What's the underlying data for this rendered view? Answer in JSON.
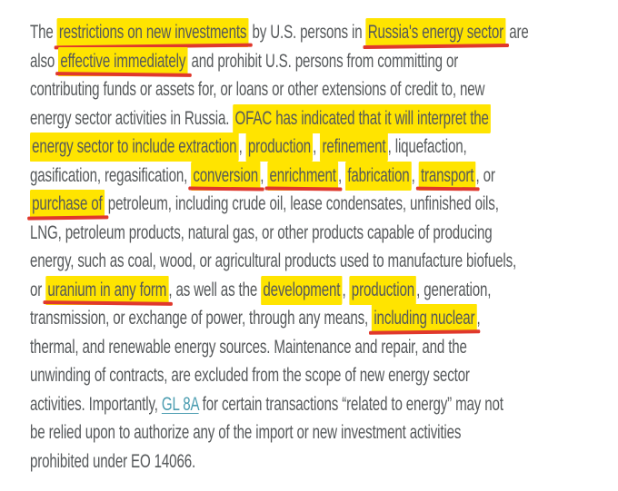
{
  "page": {
    "background_color": "#ffffff",
    "text_color": "#55585a",
    "highlight_color": "#ffe400",
    "underline_color": "#e0382c",
    "link_color": "#4a9cb0"
  },
  "paragraph": {
    "lines": [
      {
        "segments": [
          {
            "text": "The ",
            "style": "plain"
          },
          {
            "text": "restrictions on new investments",
            "style": "highlight-underline"
          },
          {
            "text": " by U.S. persons in ",
            "style": "plain"
          },
          {
            "text": "Russia's energy sector",
            "style": "highlight-underline"
          },
          {
            "text": " are",
            "style": "plain"
          }
        ]
      },
      {
        "segments": [
          {
            "text": "also ",
            "style": "plain"
          },
          {
            "text": "effective immediately",
            "style": "highlight-underline"
          },
          {
            "text": " and prohibit U.S. persons from committing or",
            "style": "plain"
          }
        ]
      },
      {
        "segments": [
          {
            "text": "contributing funds or assets for, or loans or other extensions of credit to, new",
            "style": "plain"
          }
        ]
      },
      {
        "segments": [
          {
            "text": "energy sector activities in Russia. ",
            "style": "plain"
          },
          {
            "text": "OFAC has indicated that it will interpret the",
            "style": "highlight"
          }
        ]
      },
      {
        "segments": [
          {
            "text": "energy sector to include extraction",
            "style": "highlight"
          },
          {
            "text": ", ",
            "style": "plain"
          },
          {
            "text": "production",
            "style": "highlight"
          },
          {
            "text": ", ",
            "style": "plain"
          },
          {
            "text": "refinement",
            "style": "highlight"
          },
          {
            "text": ", liquefaction,",
            "style": "plain"
          }
        ]
      },
      {
        "segments": [
          {
            "text": "gasification, regasification, ",
            "style": "plain"
          },
          {
            "text": "conversion",
            "style": "highlight-underline"
          },
          {
            "text": ", ",
            "style": "plain"
          },
          {
            "text": "enrichment",
            "style": "highlight-underline"
          },
          {
            "text": ", ",
            "style": "plain"
          },
          {
            "text": "fabrication",
            "style": "highlight"
          },
          {
            "text": ", ",
            "style": "plain"
          },
          {
            "text": "transport",
            "style": "highlight-underline"
          },
          {
            "text": ", or",
            "style": "plain"
          }
        ]
      },
      {
        "segments": [
          {
            "text": "purchase of",
            "style": "highlight-underline"
          },
          {
            "text": " petroleum, including crude oil, lease condensates, unfinished oils,",
            "style": "plain"
          }
        ]
      },
      {
        "segments": [
          {
            "text": "LNG, petroleum products, natural gas, or other products capable of producing",
            "style": "plain"
          }
        ]
      },
      {
        "segments": [
          {
            "text": "energy, such as coal, wood, or agricultural products used to manufacture biofuels,",
            "style": "plain"
          }
        ]
      },
      {
        "segments": [
          {
            "text": "or ",
            "style": "plain"
          },
          {
            "text": "uranium in any form",
            "style": "highlight-underline"
          },
          {
            "text": ", as well as the ",
            "style": "plain"
          },
          {
            "text": "development",
            "style": "highlight"
          },
          {
            "text": ", ",
            "style": "plain"
          },
          {
            "text": "production",
            "style": "highlight"
          },
          {
            "text": ", generation,",
            "style": "plain"
          }
        ]
      },
      {
        "segments": [
          {
            "text": "transmission, or exchange of power, through any means, ",
            "style": "plain"
          },
          {
            "text": "including nuclear",
            "style": "highlight-underline"
          },
          {
            "text": ",",
            "style": "plain"
          }
        ]
      },
      {
        "segments": [
          {
            "text": "thermal, and renewable energy sources. Maintenance and repair, and the",
            "style": "plain"
          }
        ]
      },
      {
        "segments": [
          {
            "text": "unwinding of contracts, are excluded from the scope of new energy sector",
            "style": "plain"
          }
        ]
      },
      {
        "segments": [
          {
            "text": "activities. Importantly, ",
            "style": "plain"
          },
          {
            "text": "GL 8A",
            "style": "link",
            "name": "gl-8a-link"
          },
          {
            "text": " for certain transactions “related to energy” may not",
            "style": "plain"
          }
        ]
      },
      {
        "segments": [
          {
            "text": "be relied upon to authorize any of the import or new investment activities",
            "style": "plain"
          }
        ]
      },
      {
        "segments": [
          {
            "text": "prohibited under EO 14066.",
            "style": "plain"
          }
        ]
      }
    ]
  }
}
